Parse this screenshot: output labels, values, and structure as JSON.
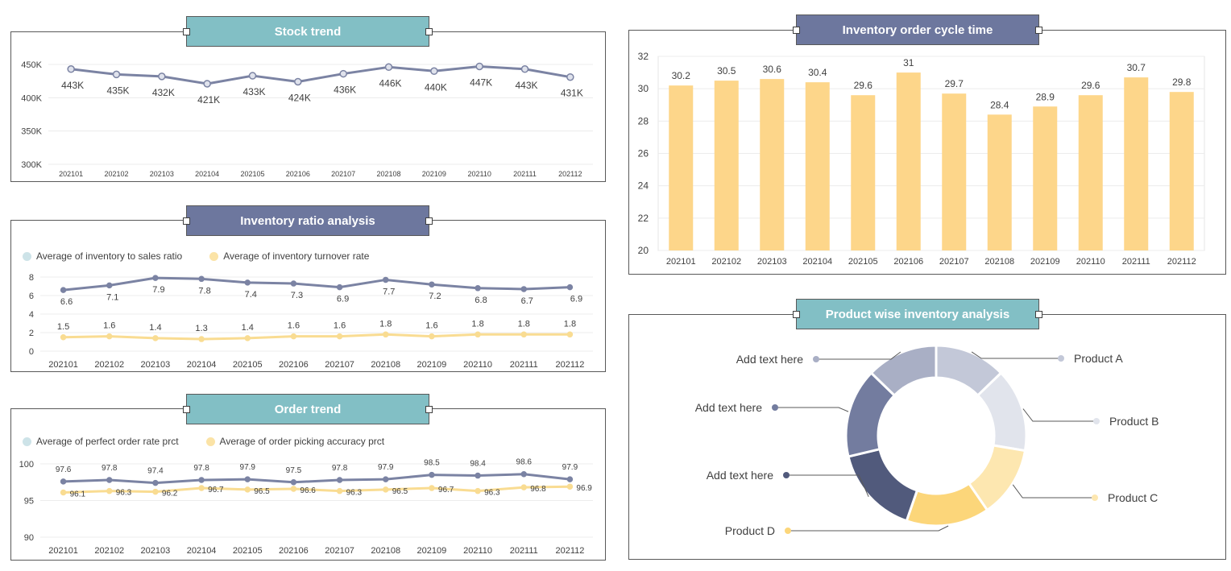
{
  "colors": {
    "teal_header": "#82bfc5",
    "slate_header": "#6d779e",
    "line_slate": "#7b83a3",
    "line_yellow": "#f9dc92",
    "bar_yellow": "#fdd68a",
    "legend_teal": "#cde3e8",
    "legend_yellow": "#fbe3a6",
    "donut": [
      "#c3c8d8",
      "#e1e4ec",
      "#fde7b0",
      "#fcd67a",
      "#515a7c",
      "#737c9f",
      "#a9afc5"
    ]
  },
  "headers": {
    "stock": "Stock trend",
    "ratio": "Inventory ratio analysis",
    "order": "Order trend",
    "cycle": "Inventory order cycle time",
    "product": "Product wise inventory analysis"
  },
  "legends": {
    "ratio": [
      "Average of inventory to sales ratio",
      "Average of inventory turnover rate"
    ],
    "order": [
      "Average of perfect order rate prct",
      "Average of order picking accuracy prct"
    ]
  },
  "chart_data": [
    {
      "id": "stock",
      "type": "line",
      "title": "Stock trend",
      "categories": [
        "202101",
        "202102",
        "202103",
        "202104",
        "202105",
        "202106",
        "202107",
        "202108",
        "202109",
        "202110",
        "202111",
        "202112"
      ],
      "series": [
        {
          "values": [
            443,
            435,
            432,
            421,
            433,
            424,
            436,
            446,
            440,
            447,
            443,
            431
          ],
          "labels": [
            "443K",
            "435K",
            "432K",
            "421K",
            "433K",
            "424K",
            "436K",
            "446K",
            "440K",
            "447K",
            "443K",
            "431K"
          ]
        }
      ],
      "ylim": [
        300,
        450
      ],
      "yticks": [
        300,
        350,
        400,
        450
      ],
      "ytick_labels": [
        "300K",
        "350K",
        "400K",
        "450K"
      ],
      "grid": true
    },
    {
      "id": "ratio",
      "type": "line",
      "title": "Inventory ratio analysis",
      "categories": [
        "202101",
        "202102",
        "202103",
        "202104",
        "202105",
        "202106",
        "202107",
        "202108",
        "202109",
        "202110",
        "202111",
        "202112"
      ],
      "series": [
        {
          "name": "Average of inventory to sales ratio",
          "values": [
            6.6,
            7.1,
            7.9,
            7.8,
            7.4,
            7.3,
            6.9,
            7.7,
            7.2,
            6.8,
            6.7,
            6.9
          ]
        },
        {
          "name": "Average of inventory turnover rate",
          "values": [
            1.5,
            1.6,
            1.4,
            1.3,
            1.4,
            1.6,
            1.6,
            1.8,
            1.6,
            1.8,
            1.8,
            1.8
          ]
        }
      ],
      "ylim": [
        0,
        8
      ],
      "yticks": [
        0,
        2,
        4,
        6,
        8
      ],
      "legend": "top-left",
      "grid": true
    },
    {
      "id": "order",
      "type": "line",
      "title": "Order trend",
      "categories": [
        "202101",
        "202102",
        "202103",
        "202104",
        "202105",
        "202106",
        "202107",
        "202108",
        "202109",
        "202110",
        "202111",
        "202112"
      ],
      "series": [
        {
          "name": "Average of perfect order rate prct",
          "values": [
            97.6,
            97.8,
            97.4,
            97.8,
            97.9,
            97.5,
            97.8,
            97.9,
            98.5,
            98.4,
            98.6,
            97.9
          ]
        },
        {
          "name": "Average of order picking accuracy prct",
          "values": [
            96.1,
            96.3,
            96.2,
            96.7,
            96.5,
            96.6,
            96.3,
            96.5,
            96.7,
            96.3,
            96.8,
            96.9
          ]
        }
      ],
      "ylim": [
        90,
        100
      ],
      "yticks": [
        90,
        95,
        100
      ],
      "legend": "top-left",
      "grid": true
    },
    {
      "id": "cycle",
      "type": "bar",
      "title": "Inventory order cycle time",
      "categories": [
        "202101",
        "202102",
        "202103",
        "202104",
        "202105",
        "202106",
        "202107",
        "202108",
        "202109",
        "202110",
        "202111",
        "202112"
      ],
      "values": [
        30.2,
        30.5,
        30.6,
        30.4,
        29.6,
        31,
        29.7,
        28.4,
        28.9,
        29.6,
        30.7,
        29.8
      ],
      "ylim": [
        20,
        32
      ],
      "yticks": [
        20,
        22,
        24,
        26,
        28,
        30,
        32
      ],
      "grid": true
    },
    {
      "id": "product",
      "type": "pie",
      "title": "Product wise inventory analysis",
      "shares": [
        0.12,
        0.14,
        0.12,
        0.14,
        0.15,
        0.15,
        0.12
      ],
      "labels": [
        "Product A",
        "Product B",
        "Product C",
        "Product D",
        "Add text here",
        "Add text here",
        "Add text here"
      ]
    }
  ]
}
